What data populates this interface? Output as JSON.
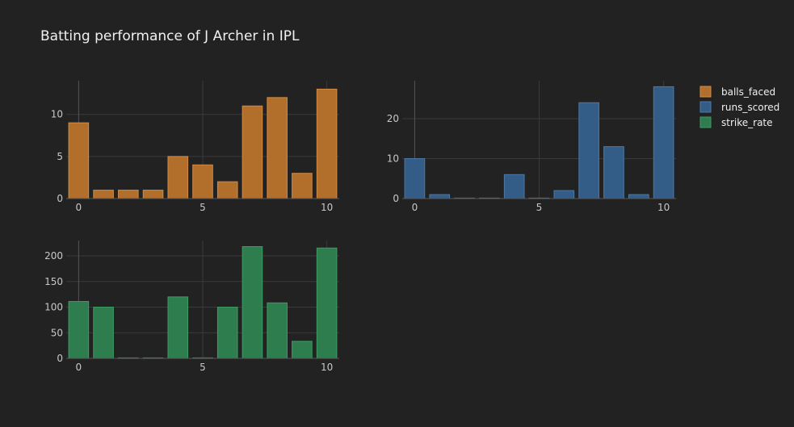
{
  "title": "Batting performance of J Archer in IPL",
  "colors": {
    "background": "#222222",
    "grid": "#3a3a3a",
    "axis_line": "#555555",
    "tick_text": "#c8c8c8",
    "title_text": "#f0f0f0",
    "legend_text": "#f0f0f0"
  },
  "chart_data": [
    {
      "type": "bar",
      "series": [
        {
          "name": "balls_faced",
          "color": "#b26f2c",
          "edge": "#d08a45",
          "x": [
            0,
            1,
            2,
            3,
            4,
            5,
            6,
            7,
            8,
            9,
            10
          ],
          "values": [
            9,
            1,
            1,
            1,
            5,
            4,
            2,
            11,
            12,
            3,
            13
          ]
        }
      ],
      "xlim": [
        -0.5,
        10.5
      ],
      "ylim": [
        0,
        14
      ],
      "xticks": [
        0,
        5,
        10
      ],
      "yticks": [
        0,
        5,
        10
      ]
    },
    {
      "type": "bar",
      "series": [
        {
          "name": "runs_scored",
          "color": "#335d86",
          "edge": "#4d79a6",
          "x": [
            0,
            1,
            2,
            3,
            4,
            5,
            6,
            7,
            8,
            9,
            10
          ],
          "values": [
            10,
            1,
            0,
            0,
            6,
            0,
            2,
            24,
            13,
            1,
            28
          ]
        }
      ],
      "xlim": [
        -0.5,
        10.5
      ],
      "ylim": [
        0,
        29.5
      ],
      "xticks": [
        0,
        5,
        10
      ],
      "yticks": [
        0,
        10,
        20
      ]
    },
    {
      "type": "bar",
      "series": [
        {
          "name": "strike_rate",
          "color": "#2e7d4f",
          "edge": "#3f9b63",
          "x": [
            0,
            1,
            2,
            3,
            4,
            5,
            6,
            7,
            8,
            9,
            10
          ],
          "values": [
            111.11,
            100,
            0,
            0,
            120,
            0,
            100,
            218.18,
            108.33,
            33.33,
            215.38
          ]
        }
      ],
      "xlim": [
        -0.5,
        10.5
      ],
      "ylim": [
        0,
        230
      ],
      "xticks": [
        0,
        5,
        10
      ],
      "yticks": [
        0,
        50,
        100,
        150,
        200
      ]
    }
  ],
  "legend": {
    "placement": "top-right",
    "items": [
      {
        "label": "balls_faced",
        "color": "#b26f2c",
        "edge": "#d08a45"
      },
      {
        "label": "runs_scored",
        "color": "#335d86",
        "edge": "#4d79a6"
      },
      {
        "label": "strike_rate",
        "color": "#2e7d4f",
        "edge": "#3f9b63"
      }
    ]
  }
}
